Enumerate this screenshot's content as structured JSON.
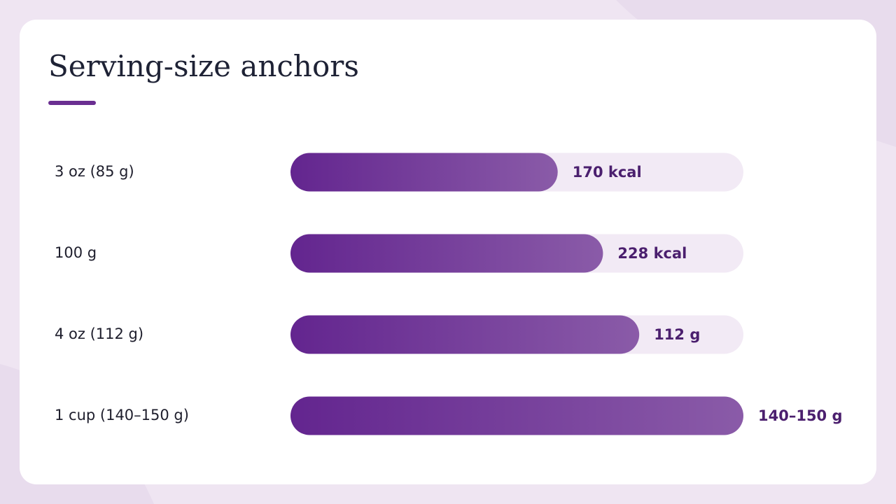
{
  "chart_data": {
    "type": "bar",
    "orientation": "horizontal",
    "title": "Serving-size anchors",
    "categories": [
      "3 oz (85 g)",
      "100 g",
      "4 oz (112 g)",
      "1 cup (140–150 g)"
    ],
    "values": [
      59,
      69,
      77,
      100
    ],
    "annotations": [
      "170 kcal",
      "228 kcal",
      "112 g",
      "140–150 g"
    ],
    "xlim": [
      0,
      100
    ],
    "colors": [
      "#63258f",
      "#8a5ba8"
    ],
    "track_color": "#f2eaf5"
  }
}
